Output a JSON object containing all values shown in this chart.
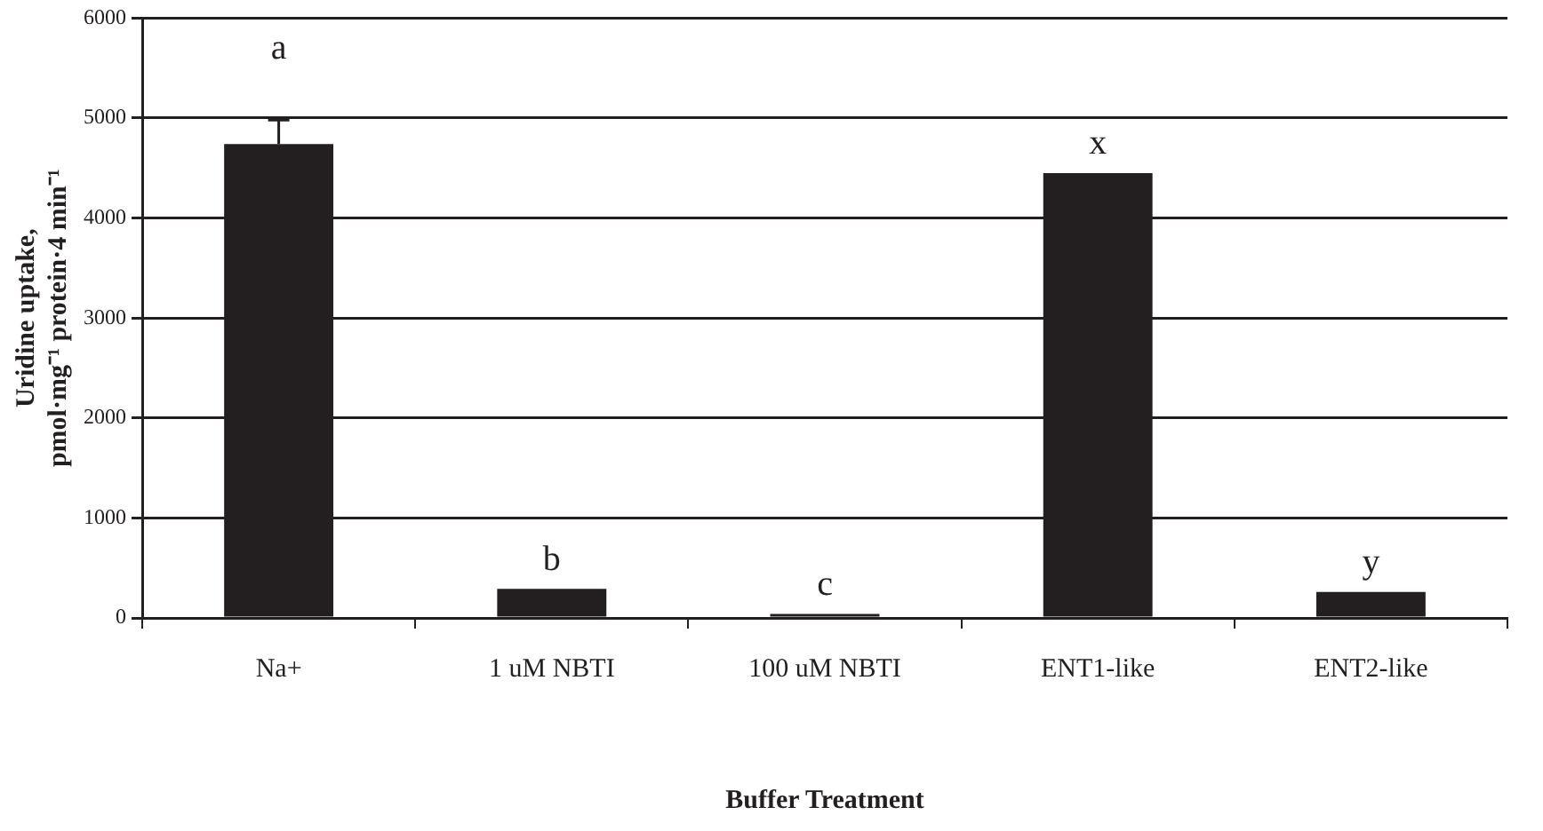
{
  "chart_data": {
    "type": "bar",
    "xlabel": "Buffer Treatment",
    "ylabel": "Uridine uptake,\npmol·mg⁻¹ protein·4 min⁻¹",
    "categories": [
      "Na+",
      "1 uM NBTI",
      "100 uM NBTI",
      "ENT1-like",
      "ENT2-like"
    ],
    "values": [
      4740,
      290,
      40,
      4450,
      260
    ],
    "color": "#231f20",
    "errors": [
      240,
      null,
      null,
      null,
      null
    ],
    "ylim": [
      0,
      6000
    ],
    "yticks": [
      0,
      1000,
      2000,
      3000,
      4000,
      5000,
      6000
    ],
    "grid": "y",
    "legend": false,
    "annotations": [
      "a",
      "b",
      "c",
      "x",
      "y"
    ]
  }
}
